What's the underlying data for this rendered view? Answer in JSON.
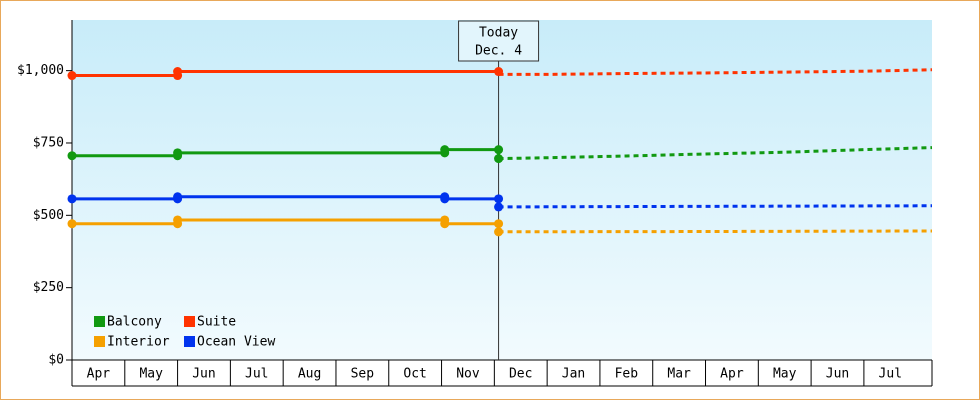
{
  "chart_data": {
    "type": "line",
    "xlim": [
      0,
      16.29
    ],
    "ylim": [
      0,
      1175
    ],
    "yticks": [
      {
        "value": 0,
        "label": "$0"
      },
      {
        "value": 250,
        "label": "$250"
      },
      {
        "value": 500,
        "label": "$500"
      },
      {
        "value": 750,
        "label": "$750"
      },
      {
        "value": 1000,
        "label": "$1,000"
      }
    ],
    "xticks": [
      {
        "value": 0.5,
        "label": "Apr"
      },
      {
        "value": 1.5,
        "label": "May"
      },
      {
        "value": 2.5,
        "label": "Jun"
      },
      {
        "value": 3.5,
        "label": "Jul"
      },
      {
        "value": 4.5,
        "label": "Aug"
      },
      {
        "value": 5.5,
        "label": "Sep"
      },
      {
        "value": 6.5,
        "label": "Oct"
      },
      {
        "value": 7.5,
        "label": "Nov"
      },
      {
        "value": 8.5,
        "label": "Dec"
      },
      {
        "value": 9.5,
        "label": "Jan"
      },
      {
        "value": 10.5,
        "label": "Feb"
      },
      {
        "value": 11.5,
        "label": "Mar"
      },
      {
        "value": 12.5,
        "label": "Apr"
      },
      {
        "value": 13.5,
        "label": "May"
      },
      {
        "value": 14.5,
        "label": "Jun"
      },
      {
        "value": 15.5,
        "label": "Jul"
      }
    ],
    "today": {
      "x": 8.08,
      "label": [
        "Today",
        "Dec. 4"
      ]
    },
    "legend": "lower left",
    "series": [
      {
        "name": "Balcony",
        "color": "#119911",
        "x": [
          0,
          2,
          2,
          7.06,
          7.06,
          8.08,
          8.08
        ],
        "values": [
          706,
          706,
          716,
          716,
          727,
          727,
          696
        ],
        "forecast": {
          "x": [
            8.08,
            9,
            10.5,
            12,
            13.5,
            15,
            16.29
          ],
          "values": [
            696,
            699,
            705,
            712,
            718,
            727,
            734
          ]
        }
      },
      {
        "name": "Suite",
        "color": "#ff3300",
        "x": [
          0,
          2,
          2,
          8.08
        ],
        "values": [
          983,
          983,
          997,
          997
        ],
        "forecast": {
          "x": [
            8.08,
            9,
            10.5,
            12,
            13.5,
            15,
            16.29
          ],
          "values": [
            987,
            987,
            990,
            992,
            995,
            998,
            1003
          ]
        }
      },
      {
        "name": "Interior",
        "color": "#f5a000",
        "x": [
          0,
          2,
          2,
          7.06,
          7.06,
          8.08,
          8.08
        ],
        "values": [
          471,
          471,
          484,
          484,
          471,
          471,
          443
        ],
        "forecast": {
          "x": [
            8.08,
            12,
            16.29
          ],
          "values": [
            443,
            444,
            446
          ]
        }
      },
      {
        "name": "Ocean View",
        "color": "#0033ee",
        "x": [
          0,
          2,
          2,
          7.06,
          7.06,
          8.08,
          8.08
        ],
        "values": [
          557,
          557,
          564,
          564,
          557,
          557,
          529
        ],
        "forecast": {
          "x": [
            8.08,
            12,
            16.29
          ],
          "values": [
            529,
            531,
            533
          ]
        }
      }
    ]
  }
}
